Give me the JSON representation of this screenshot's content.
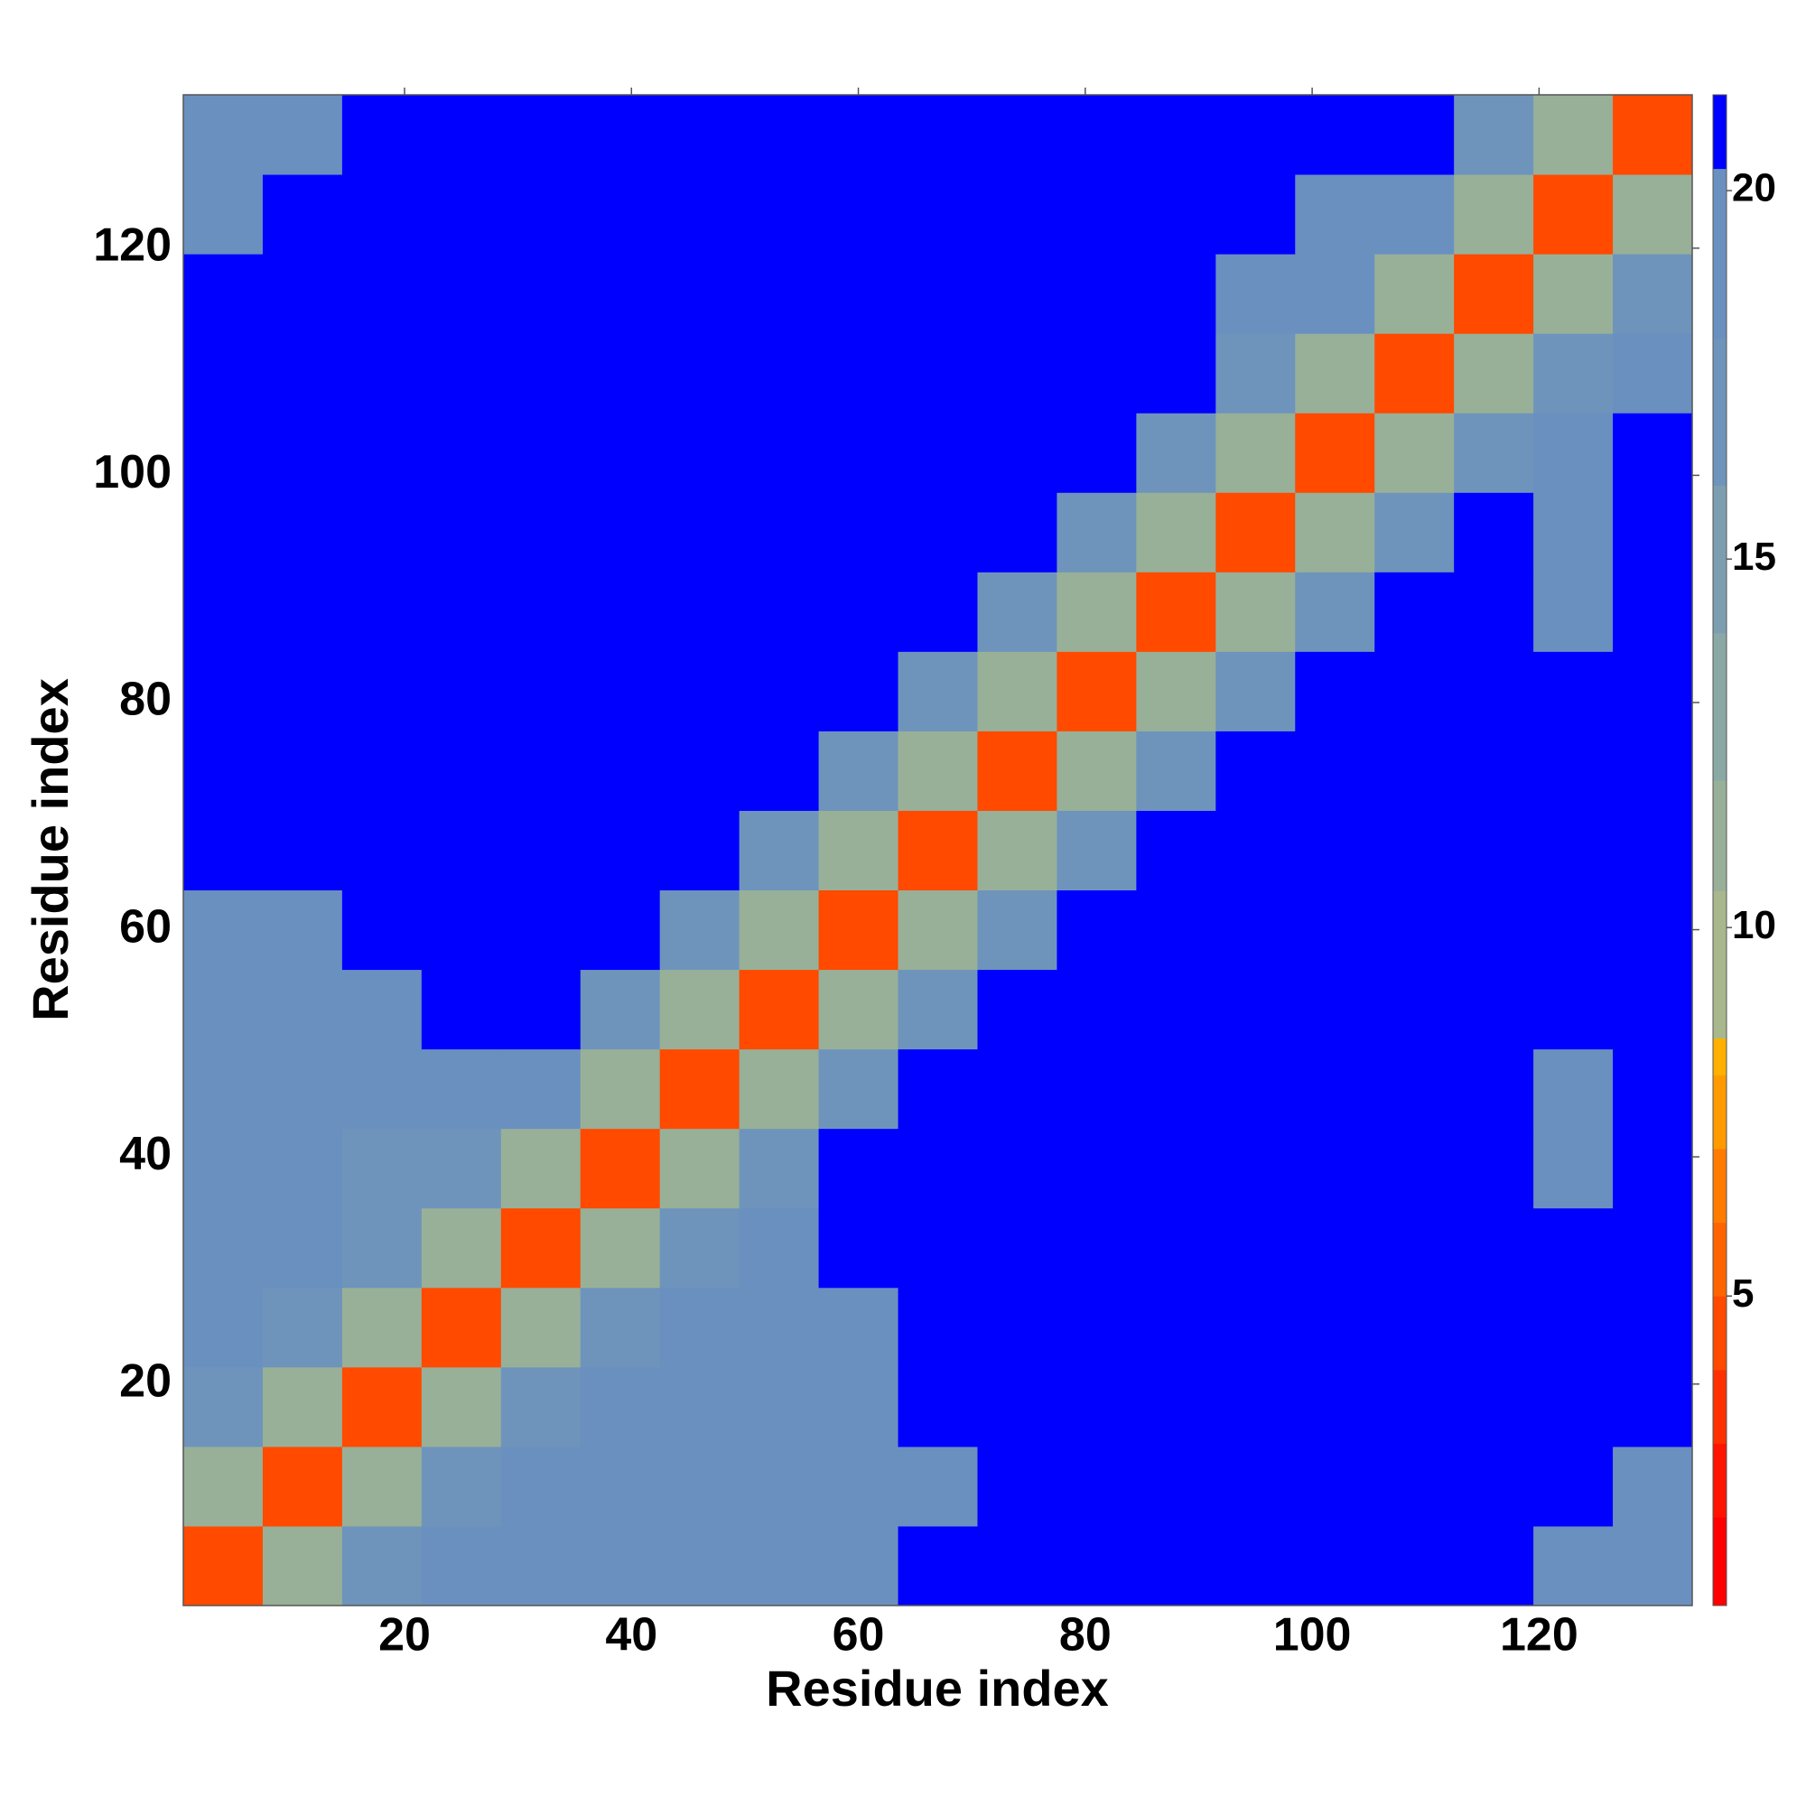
{
  "chart_data": {
    "type": "heatmap",
    "x_label": "Residue index",
    "y_label": "Residue index",
    "xlim": [
      0.5,
      133.5
    ],
    "ylim": [
      0.5,
      133.5
    ],
    "xticks": [
      20,
      40,
      60,
      80,
      100,
      120
    ],
    "yticks": [
      20,
      40,
      60,
      80,
      100,
      120
    ],
    "xbins": [
      0.5,
      7.5,
      14.5,
      21.5,
      28.5,
      35.5,
      42.5,
      49.5,
      56.5,
      63.5,
      70.5,
      77.5,
      84.5,
      91.5,
      98.5,
      105.5,
      112.5,
      119.5,
      126.5,
      133.5
    ],
    "ybins": [
      0.5,
      7.5,
      14.5,
      21.5,
      28.5,
      35.5,
      42.5,
      49.5,
      56.5,
      63.5,
      70.5,
      77.5,
      84.5,
      91.5,
      98.5,
      105.5,
      112.5,
      119.5,
      126.5,
      133.5
    ],
    "values": [
      [
        4,
        11,
        17,
        18,
        18,
        19,
        19,
        19,
        20,
        20.5,
        21,
        21,
        21,
        21,
        21,
        21,
        21,
        20,
        20
      ],
      [
        11,
        4,
        11,
        17,
        18,
        18,
        18,
        19,
        19,
        20,
        21,
        21,
        21,
        21,
        21,
        21,
        21,
        20.5,
        20
      ],
      [
        17,
        11,
        4,
        11,
        17,
        18,
        18,
        18,
        19,
        20.5,
        21,
        21,
        21,
        21,
        21,
        21,
        21,
        21,
        20.5
      ],
      [
        18,
        17,
        11,
        4,
        11,
        17,
        18,
        19,
        20,
        21,
        21,
        21,
        21,
        21,
        21,
        21,
        21,
        21,
        21
      ],
      [
        18,
        18,
        17,
        11,
        4,
        11,
        17,
        20,
        21,
        21,
        21,
        21,
        21,
        21,
        21,
        21,
        21,
        21,
        21
      ],
      [
        19,
        18,
        17,
        17,
        11,
        4,
        11,
        17,
        21,
        21,
        21,
        21,
        21,
        21,
        21,
        21,
        21,
        20,
        20.5
      ],
      [
        19,
        19,
        18,
        18,
        19,
        11,
        4,
        11,
        17,
        21,
        21,
        21,
        21,
        21,
        21,
        21,
        21,
        20,
        20.5
      ],
      [
        19,
        19,
        20,
        20.5,
        21,
        17,
        11,
        4,
        11,
        17,
        21,
        21,
        21,
        21,
        21,
        21,
        21,
        20.5,
        21
      ],
      [
        19.5,
        20,
        20.5,
        21,
        21,
        21,
        17,
        11,
        4,
        11,
        17,
        21,
        21,
        21,
        21,
        21,
        21,
        21,
        21
      ],
      [
        21,
        21,
        21,
        21,
        21,
        21,
        21,
        17,
        11,
        4,
        11,
        17,
        21,
        21,
        21,
        21,
        21,
        21,
        21
      ],
      [
        21,
        21,
        21,
        21,
        21,
        21,
        21,
        21,
        16,
        11,
        4,
        11,
        16,
        21,
        21,
        21,
        21,
        21,
        21
      ],
      [
        21,
        21,
        21,
        21,
        21,
        21,
        21,
        21,
        21,
        16,
        11,
        4,
        11,
        16,
        21,
        21,
        21,
        21,
        21
      ],
      [
        21,
        21,
        21,
        21,
        21,
        21,
        21,
        21,
        21,
        21,
        16,
        11,
        4,
        11,
        16,
        21,
        21,
        20,
        21
      ],
      [
        21,
        21,
        21,
        21,
        21,
        21,
        21,
        21,
        21,
        21,
        21,
        16,
        11,
        4,
        11,
        16,
        21,
        19.5,
        20.5
      ],
      [
        21,
        21,
        21,
        21,
        21,
        21,
        21,
        21,
        21,
        21,
        21,
        21,
        16,
        11,
        4,
        11,
        16,
        19.5,
        20.5
      ],
      [
        21,
        21,
        21,
        21,
        21,
        21,
        21,
        21,
        21,
        21,
        21,
        21,
        21,
        16,
        11,
        4,
        11,
        16,
        20
      ],
      [
        21,
        21,
        21,
        21,
        21,
        21,
        21,
        21,
        21,
        21,
        21,
        21,
        21,
        20,
        19.5,
        11,
        4,
        11,
        16
      ],
      [
        20,
        20.5,
        21,
        21,
        21,
        21,
        21,
        20.5,
        21,
        21,
        21,
        21,
        21,
        21,
        19.5,
        20,
        11,
        4,
        11
      ],
      [
        19.5,
        20,
        21,
        21,
        21,
        20.5,
        20.5,
        21,
        21,
        21,
        21,
        21,
        21,
        21,
        21,
        21,
        16,
        11,
        4
      ]
    ],
    "zlim": [
      0.8,
      21.3
    ],
    "zticks": [
      5,
      10,
      15,
      20
    ],
    "colorbar_levels": [
      0.8,
      2,
      3,
      4,
      5,
      6,
      7,
      8,
      8.5,
      10.5,
      12,
      14,
      16,
      18,
      20.3,
      21.3
    ],
    "colorbar_colors": [
      "#ff0000",
      "#ff1400",
      "#ff3000",
      "#ff4a00",
      "#ff6400",
      "#ff7c00",
      "#ff9a00",
      "#ffb000",
      "#a8b88c",
      "#98b098",
      "#8aa8a4",
      "#7c9eb0",
      "#6e94bc",
      "#6a90c0",
      "#0000ff"
    ]
  }
}
